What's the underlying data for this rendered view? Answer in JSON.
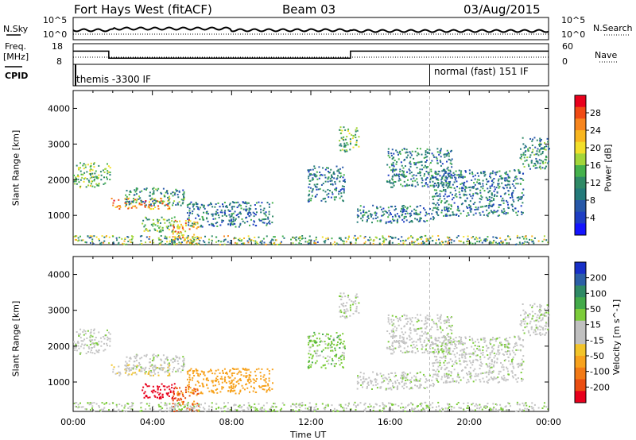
{
  "header": {
    "radar": "Fort Hays West (fitACF)",
    "beam": "Beam 03",
    "date": "03/Aug/2015"
  },
  "top_panel": {
    "nsky_label": "N.Sky",
    "nsearch_label": "N.Search",
    "left_ticks": [
      "10^5",
      "10^0"
    ],
    "right_ticks": [
      "10^5",
      "10^0"
    ]
  },
  "freq_panel": {
    "freq_label_line1": "Freq.",
    "freq_label_line2": "[MHz]",
    "nave_label": "Nave",
    "left_ticks": [
      "18",
      "8"
    ],
    "right_ticks": [
      "60",
      "0"
    ],
    "cpid_label": "CPID"
  },
  "cpid": {
    "mode1": "themis -3300 IF",
    "mode2": "normal (fast) 151 IF"
  },
  "axes": {
    "ylabel": "Slant Range [km]",
    "xlabel": "Time UT",
    "y_ticks": [
      "4000",
      "3000",
      "2000",
      "1000"
    ],
    "x_ticks": [
      "00:00",
      "04:00",
      "08:00",
      "12:00",
      "16:00",
      "20:00",
      "00:00"
    ]
  },
  "power_scale": {
    "label": "Power [dB]",
    "ticks": [
      "28",
      "24",
      "20",
      "16",
      "12",
      "8",
      "4"
    ],
    "colors": [
      "#e8001c",
      "#f04a14",
      "#f7851d",
      "#f8b61f",
      "#f2df2a",
      "#a3d63a",
      "#45b14c",
      "#2f8a66",
      "#247a7a",
      "#2758a8",
      "#1e3ec4",
      "#1414ff"
    ]
  },
  "velocity_scale": {
    "label": "Velocity [m s^-1]",
    "ticks": [
      "200",
      "100",
      "50",
      "15",
      "-15",
      "-50",
      "-100",
      "-200"
    ],
    "colors": [
      "#1830c8",
      "#2c5fa6",
      "#2f8a66",
      "#43aa4a",
      "#7ccc3a",
      "#c0c0c0",
      "#c0c0c0",
      "#f2c42a",
      "#f7a21d",
      "#f27a16",
      "#ea4e12",
      "#e8001c"
    ]
  },
  "chart_data": {
    "type": "heatmap",
    "title": "Fort Hays West (fitACF)",
    "xlabel": "Time UT",
    "ylabel": "Slant Range [km]",
    "xlim": [
      0,
      24
    ],
    "ylim": [
      180,
      4500
    ],
    "panels": [
      "Power [dB]",
      "Velocity [m s^-1]"
    ],
    "freq_series": [
      {
        "t0": 0.0,
        "t1": 1.8,
        "freq": 16
      },
      {
        "t0": 1.8,
        "t1": 14.0,
        "freq": 12
      },
      {
        "t0": 14.0,
        "t1": 24.0,
        "freq": 16
      }
    ],
    "cpid_switch_time": 18.0,
    "regions": [
      {
        "t": [
          0.0,
          1.9
        ],
        "r": [
          1800,
          2500
        ],
        "power": 15,
        "vel": 0
      },
      {
        "t": [
          1.9,
          4.9
        ],
        "r": [
          1200,
          1500
        ],
        "power": 24,
        "vel": -10
      },
      {
        "t": [
          2.6,
          5.6
        ],
        "r": [
          1300,
          1800
        ],
        "power": 10,
        "vel": 0
      },
      {
        "t": [
          3.4,
          5.1
        ],
        "r": [
          550,
          1000
        ],
        "power": 14,
        "vel": -150
      },
      {
        "t": [
          5.0,
          6.3
        ],
        "r": [
          200,
          900
        ],
        "power": 22,
        "vel": -80
      },
      {
        "t": [
          5.7,
          10.1
        ],
        "r": [
          700,
          1400
        ],
        "power": 8,
        "vel": -60
      },
      {
        "t": [
          11.8,
          13.7
        ],
        "r": [
          1400,
          2400
        ],
        "power": 8,
        "vel": 20
      },
      {
        "t": [
          13.4,
          14.4
        ],
        "r": [
          2800,
          3500
        ],
        "power": 14,
        "vel": 0
      },
      {
        "t": [
          14.3,
          18.4
        ],
        "r": [
          800,
          1300
        ],
        "power": 8,
        "vel": 0
      },
      {
        "t": [
          15.8,
          19.1
        ],
        "r": [
          1800,
          2900
        ],
        "power": 9,
        "vel": 0
      },
      {
        "t": [
          18.1,
          22.7
        ],
        "r": [
          1000,
          2300
        ],
        "power": 8,
        "vel": 0
      },
      {
        "t": [
          22.5,
          24.0
        ],
        "r": [
          2300,
          3200
        ],
        "power": 10,
        "vel": 0
      }
    ]
  }
}
